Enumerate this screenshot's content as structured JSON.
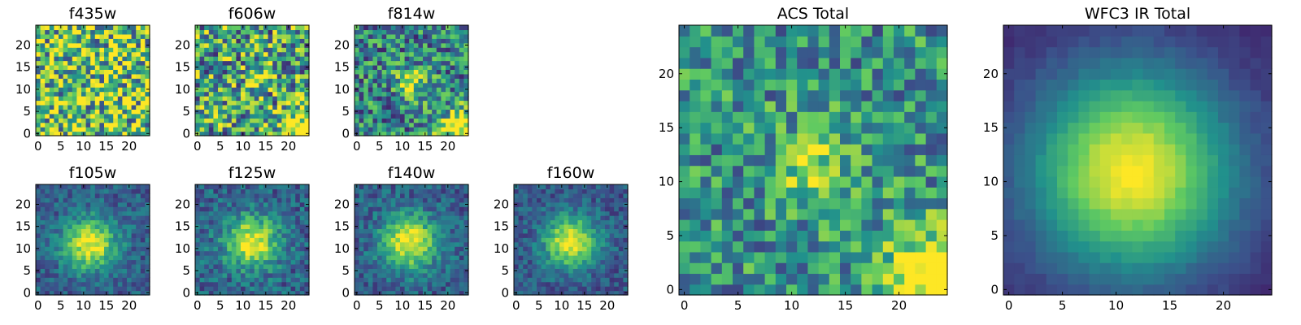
{
  "figure": {
    "colormap": "viridis",
    "colormap_stops": [
      "#440154",
      "#3b528b",
      "#21918c",
      "#5ec962",
      "#fde725"
    ],
    "axes_color": "#000000",
    "background": "#ffffff"
  },
  "chart_data": [
    {
      "id": "f435w",
      "type": "heatmap",
      "title": "f435w",
      "grid_size": 25,
      "xticks": [
        "0",
        "5",
        "10",
        "15",
        "20"
      ],
      "yticks": [
        "0",
        "5",
        "10",
        "15",
        "20"
      ],
      "xlim": [
        -0.5,
        24.5
      ],
      "ylim": [
        -0.5,
        24.5
      ],
      "pattern": "noise",
      "base": 0.72,
      "noise": 0.5,
      "blobs": []
    },
    {
      "id": "f606w",
      "type": "heatmap",
      "title": "f606w",
      "grid_size": 25,
      "xticks": [
        "0",
        "5",
        "10",
        "15",
        "20"
      ],
      "yticks": [
        "0",
        "5",
        "10",
        "15",
        "20"
      ],
      "xlim": [
        -0.5,
        24.5
      ],
      "ylim": [
        -0.5,
        24.5
      ],
      "pattern": "noise",
      "base": 0.58,
      "noise": 0.45,
      "blobs": [
        {
          "x": 13,
          "y": 12.5,
          "amp": 0.35,
          "sigma": 1.8
        },
        {
          "x": 24,
          "y": 0,
          "amp": 0.6,
          "sigma": 3.5
        }
      ]
    },
    {
      "id": "f814w",
      "type": "heatmap",
      "title": "f814w",
      "grid_size": 25,
      "xticks": [
        "0",
        "5",
        "10",
        "15",
        "20"
      ],
      "yticks": [
        "0",
        "5",
        "10",
        "15",
        "20"
      ],
      "xlim": [
        -0.5,
        24.5
      ],
      "ylim": [
        -0.5,
        24.5
      ],
      "pattern": "noise",
      "base": 0.45,
      "noise": 0.35,
      "blobs": [
        {
          "x": 12,
          "y": 11.5,
          "amp": 0.45,
          "sigma": 2.5
        },
        {
          "x": 24,
          "y": 0,
          "amp": 0.7,
          "sigma": 4
        }
      ]
    },
    {
      "id": "f105w",
      "type": "heatmap",
      "title": "f105w",
      "grid_size": 25,
      "xticks": [
        "0",
        "5",
        "10",
        "15",
        "20"
      ],
      "yticks": [
        "0",
        "5",
        "10",
        "15",
        "20"
      ],
      "xlim": [
        -0.5,
        24.5
      ],
      "ylim": [
        -0.5,
        24.5
      ],
      "pattern": "source",
      "base": 0.3,
      "noise": 0.15,
      "blobs": [
        {
          "x": 11.5,
          "y": 11,
          "amp": 0.7,
          "sigma": 4
        }
      ]
    },
    {
      "id": "f125w",
      "type": "heatmap",
      "title": "f125w",
      "grid_size": 25,
      "xticks": [
        "0",
        "5",
        "10",
        "15",
        "20"
      ],
      "yticks": [
        "0",
        "5",
        "10",
        "15",
        "20"
      ],
      "xlim": [
        -0.5,
        24.5
      ],
      "ylim": [
        -0.5,
        24.5
      ],
      "pattern": "source",
      "base": 0.32,
      "noise": 0.18,
      "blobs": [
        {
          "x": 12,
          "y": 11.5,
          "amp": 0.68,
          "sigma": 4
        }
      ]
    },
    {
      "id": "f140w",
      "type": "heatmap",
      "title": "f140w",
      "grid_size": 25,
      "xticks": [
        "0",
        "5",
        "10",
        "15",
        "20"
      ],
      "yticks": [
        "0",
        "5",
        "10",
        "15",
        "20"
      ],
      "xlim": [
        -0.5,
        24.5
      ],
      "ylim": [
        -0.5,
        24.5
      ],
      "pattern": "source",
      "base": 0.3,
      "noise": 0.16,
      "blobs": [
        {
          "x": 11.5,
          "y": 11.5,
          "amp": 0.7,
          "sigma": 4.2
        }
      ]
    },
    {
      "id": "f160w",
      "type": "heatmap",
      "title": "f160w",
      "grid_size": 25,
      "xticks": [
        "0",
        "5",
        "10",
        "15",
        "20"
      ],
      "yticks": [
        "0",
        "5",
        "10",
        "15",
        "20"
      ],
      "xlim": [
        -0.5,
        24.5
      ],
      "ylim": [
        -0.5,
        24.5
      ],
      "pattern": "source",
      "base": 0.28,
      "noise": 0.14,
      "blobs": [
        {
          "x": 12,
          "y": 11.5,
          "amp": 0.72,
          "sigma": 4
        }
      ]
    },
    {
      "id": "acs_total",
      "type": "heatmap",
      "title": "ACS Total",
      "grid_size": 25,
      "xticks": [
        "0",
        "5",
        "10",
        "15",
        "20"
      ],
      "yticks": [
        "0",
        "5",
        "10",
        "15",
        "20"
      ],
      "xlim": [
        -0.5,
        24.5
      ],
      "ylim": [
        -0.5,
        24.5
      ],
      "pattern": "noise",
      "base": 0.5,
      "noise": 0.3,
      "blobs": [
        {
          "x": 12,
          "y": 11.5,
          "amp": 0.35,
          "sigma": 2.8
        },
        {
          "x": 24,
          "y": 0,
          "amp": 0.7,
          "sigma": 4
        }
      ]
    },
    {
      "id": "wfc3_ir_total",
      "type": "heatmap",
      "title": "WFC3 IR Total",
      "grid_size": 25,
      "xticks": [
        "0",
        "5",
        "10",
        "15",
        "20"
      ],
      "yticks": [
        "0",
        "5",
        "10",
        "15",
        "20"
      ],
      "xlim": [
        -0.5,
        24.5
      ],
      "ylim": [
        -0.5,
        24.5
      ],
      "pattern": "source",
      "base": 0.12,
      "noise": 0.03,
      "blobs": [
        {
          "x": 11.5,
          "y": 11,
          "amp": 0.88,
          "sigma": 6.5
        }
      ]
    }
  ]
}
